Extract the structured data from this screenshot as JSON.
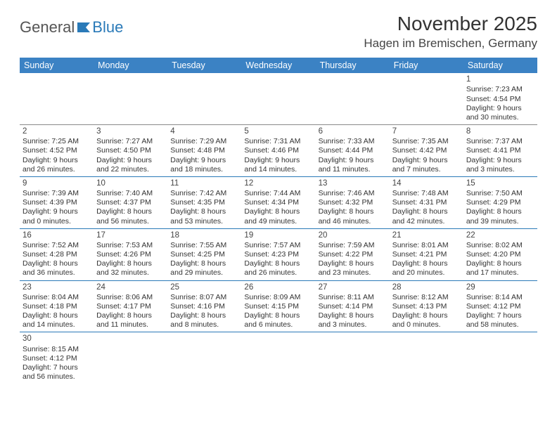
{
  "logo": {
    "text1": "General",
    "text2": "Blue"
  },
  "title": "November 2025",
  "location": "Hagen im Bremischen, Germany",
  "colors": {
    "header_bg": "#3b82c4",
    "header_text": "#ffffff",
    "row_border": "#2a7ab8",
    "logo_accent": "#2a7ab8"
  },
  "weekdays": [
    "Sunday",
    "Monday",
    "Tuesday",
    "Wednesday",
    "Thursday",
    "Friday",
    "Saturday"
  ],
  "weeks": [
    [
      null,
      null,
      null,
      null,
      null,
      null,
      {
        "day": "1",
        "sunrise": "Sunrise: 7:23 AM",
        "sunset": "Sunset: 4:54 PM",
        "daylight1": "Daylight: 9 hours",
        "daylight2": "and 30 minutes."
      }
    ],
    [
      {
        "day": "2",
        "sunrise": "Sunrise: 7:25 AM",
        "sunset": "Sunset: 4:52 PM",
        "daylight1": "Daylight: 9 hours",
        "daylight2": "and 26 minutes."
      },
      {
        "day": "3",
        "sunrise": "Sunrise: 7:27 AM",
        "sunset": "Sunset: 4:50 PM",
        "daylight1": "Daylight: 9 hours",
        "daylight2": "and 22 minutes."
      },
      {
        "day": "4",
        "sunrise": "Sunrise: 7:29 AM",
        "sunset": "Sunset: 4:48 PM",
        "daylight1": "Daylight: 9 hours",
        "daylight2": "and 18 minutes."
      },
      {
        "day": "5",
        "sunrise": "Sunrise: 7:31 AM",
        "sunset": "Sunset: 4:46 PM",
        "daylight1": "Daylight: 9 hours",
        "daylight2": "and 14 minutes."
      },
      {
        "day": "6",
        "sunrise": "Sunrise: 7:33 AM",
        "sunset": "Sunset: 4:44 PM",
        "daylight1": "Daylight: 9 hours",
        "daylight2": "and 11 minutes."
      },
      {
        "day": "7",
        "sunrise": "Sunrise: 7:35 AM",
        "sunset": "Sunset: 4:42 PM",
        "daylight1": "Daylight: 9 hours",
        "daylight2": "and 7 minutes."
      },
      {
        "day": "8",
        "sunrise": "Sunrise: 7:37 AM",
        "sunset": "Sunset: 4:41 PM",
        "daylight1": "Daylight: 9 hours",
        "daylight2": "and 3 minutes."
      }
    ],
    [
      {
        "day": "9",
        "sunrise": "Sunrise: 7:39 AM",
        "sunset": "Sunset: 4:39 PM",
        "daylight1": "Daylight: 9 hours",
        "daylight2": "and 0 minutes."
      },
      {
        "day": "10",
        "sunrise": "Sunrise: 7:40 AM",
        "sunset": "Sunset: 4:37 PM",
        "daylight1": "Daylight: 8 hours",
        "daylight2": "and 56 minutes."
      },
      {
        "day": "11",
        "sunrise": "Sunrise: 7:42 AM",
        "sunset": "Sunset: 4:35 PM",
        "daylight1": "Daylight: 8 hours",
        "daylight2": "and 53 minutes."
      },
      {
        "day": "12",
        "sunrise": "Sunrise: 7:44 AM",
        "sunset": "Sunset: 4:34 PM",
        "daylight1": "Daylight: 8 hours",
        "daylight2": "and 49 minutes."
      },
      {
        "day": "13",
        "sunrise": "Sunrise: 7:46 AM",
        "sunset": "Sunset: 4:32 PM",
        "daylight1": "Daylight: 8 hours",
        "daylight2": "and 46 minutes."
      },
      {
        "day": "14",
        "sunrise": "Sunrise: 7:48 AM",
        "sunset": "Sunset: 4:31 PM",
        "daylight1": "Daylight: 8 hours",
        "daylight2": "and 42 minutes."
      },
      {
        "day": "15",
        "sunrise": "Sunrise: 7:50 AM",
        "sunset": "Sunset: 4:29 PM",
        "daylight1": "Daylight: 8 hours",
        "daylight2": "and 39 minutes."
      }
    ],
    [
      {
        "day": "16",
        "sunrise": "Sunrise: 7:52 AM",
        "sunset": "Sunset: 4:28 PM",
        "daylight1": "Daylight: 8 hours",
        "daylight2": "and 36 minutes."
      },
      {
        "day": "17",
        "sunrise": "Sunrise: 7:53 AM",
        "sunset": "Sunset: 4:26 PM",
        "daylight1": "Daylight: 8 hours",
        "daylight2": "and 32 minutes."
      },
      {
        "day": "18",
        "sunrise": "Sunrise: 7:55 AM",
        "sunset": "Sunset: 4:25 PM",
        "daylight1": "Daylight: 8 hours",
        "daylight2": "and 29 minutes."
      },
      {
        "day": "19",
        "sunrise": "Sunrise: 7:57 AM",
        "sunset": "Sunset: 4:23 PM",
        "daylight1": "Daylight: 8 hours",
        "daylight2": "and 26 minutes."
      },
      {
        "day": "20",
        "sunrise": "Sunrise: 7:59 AM",
        "sunset": "Sunset: 4:22 PM",
        "daylight1": "Daylight: 8 hours",
        "daylight2": "and 23 minutes."
      },
      {
        "day": "21",
        "sunrise": "Sunrise: 8:01 AM",
        "sunset": "Sunset: 4:21 PM",
        "daylight1": "Daylight: 8 hours",
        "daylight2": "and 20 minutes."
      },
      {
        "day": "22",
        "sunrise": "Sunrise: 8:02 AM",
        "sunset": "Sunset: 4:20 PM",
        "daylight1": "Daylight: 8 hours",
        "daylight2": "and 17 minutes."
      }
    ],
    [
      {
        "day": "23",
        "sunrise": "Sunrise: 8:04 AM",
        "sunset": "Sunset: 4:18 PM",
        "daylight1": "Daylight: 8 hours",
        "daylight2": "and 14 minutes."
      },
      {
        "day": "24",
        "sunrise": "Sunrise: 8:06 AM",
        "sunset": "Sunset: 4:17 PM",
        "daylight1": "Daylight: 8 hours",
        "daylight2": "and 11 minutes."
      },
      {
        "day": "25",
        "sunrise": "Sunrise: 8:07 AM",
        "sunset": "Sunset: 4:16 PM",
        "daylight1": "Daylight: 8 hours",
        "daylight2": "and 8 minutes."
      },
      {
        "day": "26",
        "sunrise": "Sunrise: 8:09 AM",
        "sunset": "Sunset: 4:15 PM",
        "daylight1": "Daylight: 8 hours",
        "daylight2": "and 6 minutes."
      },
      {
        "day": "27",
        "sunrise": "Sunrise: 8:11 AM",
        "sunset": "Sunset: 4:14 PM",
        "daylight1": "Daylight: 8 hours",
        "daylight2": "and 3 minutes."
      },
      {
        "day": "28",
        "sunrise": "Sunrise: 8:12 AM",
        "sunset": "Sunset: 4:13 PM",
        "daylight1": "Daylight: 8 hours",
        "daylight2": "and 0 minutes."
      },
      {
        "day": "29",
        "sunrise": "Sunrise: 8:14 AM",
        "sunset": "Sunset: 4:12 PM",
        "daylight1": "Daylight: 7 hours",
        "daylight2": "and 58 minutes."
      }
    ],
    [
      {
        "day": "30",
        "sunrise": "Sunrise: 8:15 AM",
        "sunset": "Sunset: 4:12 PM",
        "daylight1": "Daylight: 7 hours",
        "daylight2": "and 56 minutes."
      },
      null,
      null,
      null,
      null,
      null,
      null
    ]
  ]
}
